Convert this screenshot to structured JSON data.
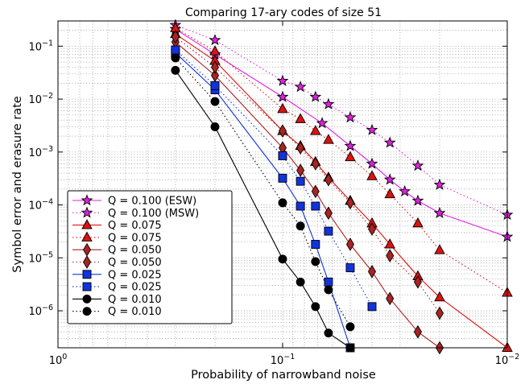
{
  "chart_data": {
    "type": "line",
    "title": "Comparing 17-ary codes of size 51",
    "xlabel": "Probability of narrowband noise",
    "ylabel": "Symbol error and erasure rate",
    "xscale": "log",
    "yscale": "log",
    "xlim": [
      1,
      0.01
    ],
    "ylim": [
      2e-07,
      0.3
    ],
    "xticks": [
      {
        "value": 1,
        "label": "10^0"
      },
      {
        "value": 0.1,
        "label": "10^-1"
      },
      {
        "value": 0.01,
        "label": "10^-2"
      }
    ],
    "yticks": [
      {
        "value": 0.1,
        "label": "10^-1"
      },
      {
        "value": 0.01,
        "label": "10^-2"
      },
      {
        "value": 0.001,
        "label": "10^-3"
      },
      {
        "value": 0.0001,
        "label": "10^-4"
      },
      {
        "value": 1e-05,
        "label": "10^-5"
      },
      {
        "value": 1e-06,
        "label": "10^-6"
      }
    ],
    "grid": true,
    "legend_position": "bottom-left",
    "series": [
      {
        "name": "Q = 0.100 (ESW)",
        "color": "#e020e0",
        "marker": "star",
        "linestyle": "solid",
        "x": [
          0.3,
          0.2,
          0.1,
          0.0667,
          0.05,
          0.04,
          0.0333,
          0.0286,
          0.025,
          0.02,
          0.01
        ],
        "y": [
          0.21,
          0.07,
          0.011,
          0.0035,
          0.0013,
          0.0006,
          0.0003,
          0.00018,
          0.00012,
          7e-05,
          2.5e-05
        ]
      },
      {
        "name": "Q = 0.100 (MSW)",
        "color": "#e020e0",
        "marker": "star",
        "linestyle": "dotted",
        "x": [
          0.3,
          0.2,
          0.1,
          0.0833,
          0.0714,
          0.0625,
          0.05,
          0.04,
          0.0333,
          0.025,
          0.02,
          0.01
        ],
        "y": [
          0.25,
          0.13,
          0.022,
          0.017,
          0.011,
          0.008,
          0.0045,
          0.0026,
          0.0015,
          0.00055,
          0.00024,
          6.5e-05
        ]
      },
      {
        "name": "Q = 0.075",
        "color": "#dd1111",
        "marker": "triangle",
        "linestyle": "solid",
        "x": [
          0.3,
          0.2,
          0.1,
          0.0833,
          0.0714,
          0.0625,
          0.05,
          0.04,
          0.0333,
          0.025,
          0.02,
          0.01
        ],
        "y": [
          0.17,
          0.053,
          0.0025,
          0.0013,
          0.00065,
          0.00033,
          0.00012,
          4.5e-05,
          1.8e-05,
          4.5e-06,
          1.8e-06,
          2e-07
        ]
      },
      {
        "name": "Q = 0.075",
        "color": "#dd1111",
        "marker": "triangle",
        "linestyle": "dotted",
        "x": [
          0.3,
          0.2,
          0.1,
          0.0833,
          0.0714,
          0.0625,
          0.05,
          0.04,
          0.0333,
          0.025,
          0.02,
          0.01
        ],
        "y": [
          0.22,
          0.08,
          0.0065,
          0.0042,
          0.0025,
          0.0017,
          0.0008,
          0.00035,
          0.00016,
          4.5e-05,
          1.4e-05,
          2.2e-06
        ]
      },
      {
        "name": "Q = 0.050",
        "color": "#aa2222",
        "marker": "diamond",
        "linestyle": "solid",
        "x": [
          0.3,
          0.2,
          0.1,
          0.0833,
          0.0714,
          0.0625,
          0.05,
          0.04,
          0.0333,
          0.025,
          0.02
        ],
        "y": [
          0.12,
          0.028,
          0.0012,
          0.00045,
          0.00018,
          7e-05,
          1.8e-05,
          5.5e-06,
          1.7e-06,
          4e-07,
          2e-07
        ]
      },
      {
        "name": "Q = 0.050",
        "color": "#aa2222",
        "marker": "diamond",
        "linestyle": "dotted",
        "x": [
          0.3,
          0.2,
          0.1,
          0.0833,
          0.0714,
          0.0625,
          0.05,
          0.04,
          0.0333,
          0.025,
          0.02
        ],
        "y": [
          0.15,
          0.04,
          0.0025,
          0.0012,
          0.0006,
          0.0003,
          0.00011,
          3.5e-05,
          1.1e-05,
          3.5e-06,
          9e-07
        ]
      },
      {
        "name": "Q = 0.025",
        "color": "#1133dd",
        "marker": "square",
        "linestyle": "solid",
        "x": [
          0.3,
          0.2,
          0.1,
          0.0833,
          0.0714,
          0.0625,
          0.05
        ],
        "y": [
          0.075,
          0.015,
          0.00032,
          9.5e-05,
          1.8e-05,
          3.5e-06,
          2e-07
        ]
      },
      {
        "name": "Q = 0.025",
        "color": "#1133dd",
        "marker": "square",
        "linestyle": "dotted",
        "x": [
          0.3,
          0.2,
          0.1,
          0.0833,
          0.0714,
          0.0625,
          0.05,
          0.04
        ],
        "y": [
          0.085,
          0.018,
          0.00085,
          0.00028,
          9.5e-05,
          3.2e-05,
          6.5e-06,
          1.2e-06
        ]
      },
      {
        "name": "Q = 0.010",
        "color": "#000000",
        "marker": "circle",
        "linestyle": "solid",
        "x": [
          0.3,
          0.2,
          0.1,
          0.0833,
          0.0714,
          0.0625,
          0.05
        ],
        "y": [
          0.035,
          0.003,
          9.5e-06,
          3.5e-06,
          1.2e-06,
          3.8e-07,
          2e-07
        ]
      },
      {
        "name": "Q = 0.010",
        "color": "#000000",
        "marker": "circle",
        "linestyle": "dotted",
        "x": [
          0.3,
          0.2,
          0.1,
          0.0833,
          0.0714,
          0.0625,
          0.05
        ],
        "y": [
          0.06,
          0.009,
          0.00011,
          4e-05,
          8.5e-06,
          2.5e-06,
          5e-07
        ]
      }
    ]
  }
}
